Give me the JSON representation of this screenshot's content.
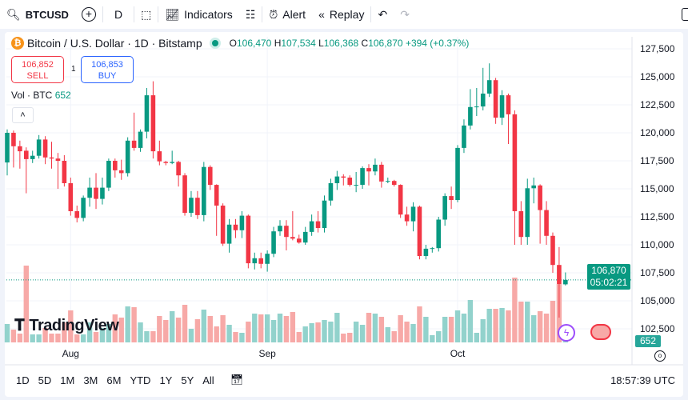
{
  "toolbar": {
    "symbol": "BTCUSD",
    "interval": "D",
    "indicators": "Indicators",
    "alert": "Alert",
    "replay": "Replay"
  },
  "legend": {
    "title": "Bitcoin / U.S. Dollar · 1D · Bitstamp",
    "o_label": "O",
    "o": "106,470",
    "h_label": "H",
    "h": "107,534",
    "l_label": "L",
    "l": "106,368",
    "c_label": "C",
    "c": "106,870",
    "change": "+394 (+0.37%)"
  },
  "trade": {
    "sell_price": "106,852",
    "sell": "SELL",
    "spread": "1",
    "buy_price": "106,853",
    "buy": "BUY"
  },
  "volume_legend": {
    "label": "Vol · BTC",
    "value": "652"
  },
  "logo": "TradingView",
  "price_label": {
    "price": "106,870",
    "countdown": "05:02:21"
  },
  "volume_label": "652",
  "bottom": {
    "ranges": [
      "1D",
      "5D",
      "1M",
      "3M",
      "6M",
      "YTD",
      "1Y",
      "5Y",
      "All"
    ],
    "time": "18:57:39 UTC"
  },
  "colors": {
    "up": "#089981",
    "down": "#f23645",
    "vol_up": "#92d2cc",
    "vol_down": "#f7a9a7"
  },
  "chart_data": {
    "type": "candlestick",
    "y_ticks": [
      127500,
      125000,
      122500,
      120000,
      117500,
      115000,
      112500,
      110000,
      107500,
      105000,
      102500
    ],
    "y_tick_labels": [
      "127,500",
      "125,000",
      "122,500",
      "120,000",
      "117,500",
      "115,000",
      "112,500",
      "110,000",
      "107,500",
      "105,000",
      "102,500"
    ],
    "x_labels": [
      {
        "label": "Aug",
        "index": 10
      },
      {
        "label": "Sep",
        "index": 41
      },
      {
        "label": "Oct",
        "index": 71
      }
    ],
    "last_price": 106870,
    "ohlc": [
      [
        117350,
        120300,
        116200,
        120000
      ],
      [
        120000,
        120200,
        116900,
        118800
      ],
      [
        118800,
        119300,
        116800,
        118350
      ],
      [
        118400,
        118700,
        114600,
        117650
      ],
      [
        117650,
        118400,
        117300,
        117950
      ],
      [
        117950,
        119800,
        117700,
        119400
      ],
      [
        119400,
        119700,
        117200,
        117800
      ],
      [
        117800,
        119200,
        116800,
        117700
      ],
      [
        117700,
        118200,
        115000,
        117500
      ],
      [
        117500,
        118000,
        115200,
        115500
      ],
      [
        115500,
        116000,
        112600,
        113000
      ],
      [
        113000,
        113500,
        112000,
        112400
      ],
      [
        112400,
        114400,
        112100,
        114200
      ],
      [
        114200,
        116000,
        113400,
        115100
      ],
      [
        115100,
        116400,
        113200,
        114100
      ],
      [
        114100,
        116000,
        113600,
        115100
      ],
      [
        115100,
        117700,
        114800,
        117500
      ],
      [
        117500,
        117700,
        116000,
        116650
      ],
      [
        116650,
        117600,
        115800,
        116400
      ],
      [
        116400,
        119600,
        116100,
        119300
      ],
      [
        119300,
        121800,
        118400,
        118650
      ],
      [
        118650,
        120300,
        118300,
        120100
      ],
      [
        120100,
        124000,
        119500,
        123350
      ],
      [
        123350,
        124600,
        117700,
        118350
      ],
      [
        118350,
        119300,
        117100,
        117450
      ],
      [
        117400,
        117500,
        117100,
        117300
      ],
      [
        117300,
        118400,
        117200,
        117400
      ],
      [
        117400,
        117500,
        115200,
        116200
      ],
      [
        116200,
        116400,
        112600,
        112850
      ],
      [
        112850,
        114800,
        112500,
        114200
      ],
      [
        114200,
        114800,
        112300,
        112650
      ],
      [
        112650,
        117400,
        112100,
        116950
      ],
      [
        116950,
        117100,
        114900,
        115350
      ],
      [
        115350,
        115400,
        110800,
        113500
      ],
      [
        113500,
        113700,
        109900,
        110100
      ],
      [
        110100,
        112300,
        109300,
        111800
      ],
      [
        111800,
        112300,
        110600,
        111300
      ],
      [
        111300,
        113000,
        110600,
        112600
      ],
      [
        112600,
        112700,
        107900,
        108350
      ],
      [
        108350,
        109300,
        107800,
        108800
      ],
      [
        108800,
        109300,
        107900,
        108300
      ],
      [
        108300,
        109500,
        107600,
        109200
      ],
      [
        109200,
        111600,
        108900,
        111200
      ],
      [
        111200,
        112200,
        110800,
        111700
      ],
      [
        111700,
        112200,
        109500,
        110700
      ],
      [
        110700,
        113000,
        110400,
        110550
      ],
      [
        110550,
        110900,
        110100,
        110200
      ],
      [
        110200,
        111600,
        110000,
        111150
      ],
      [
        111150,
        112700,
        110800,
        112100
      ],
      [
        112100,
        113000,
        111100,
        111500
      ],
      [
        111500,
        114400,
        111100,
        113950
      ],
      [
        113950,
        115900,
        113500,
        115500
      ],
      [
        115500,
        116600,
        114900,
        116100
      ],
      [
        116100,
        116300,
        115300,
        116000
      ],
      [
        116000,
        116200,
        115200,
        115350
      ],
      [
        115350,
        116500,
        114700,
        115350
      ],
      [
        115350,
        117000,
        115000,
        116850
      ],
      [
        116850,
        117200,
        115300,
        116550
      ],
      [
        116550,
        117700,
        116200,
        117150
      ],
      [
        117150,
        117400,
        115100,
        115650
      ],
      [
        115650,
        116000,
        115500,
        115700
      ],
      [
        115700,
        115800,
        115200,
        115350
      ],
      [
        115350,
        115400,
        112400,
        112700
      ],
      [
        112700,
        113400,
        111700,
        112100
      ],
      [
        112100,
        113800,
        111200,
        113400
      ],
      [
        113400,
        113500,
        108700,
        109000
      ],
      [
        109000,
        110000,
        108700,
        109650
      ],
      [
        109650,
        109800,
        109300,
        109700
      ],
      [
        109700,
        112500,
        109400,
        112250
      ],
      [
        112250,
        114600,
        111700,
        114350
      ],
      [
        114350,
        115200,
        113200,
        114000
      ],
      [
        114000,
        118900,
        113800,
        118650
      ],
      [
        118650,
        121200,
        118200,
        120650
      ],
      [
        120650,
        123900,
        120300,
        122300
      ],
      [
        122300,
        124000,
        121500,
        122350
      ],
      [
        122350,
        125800,
        122000,
        123500
      ],
      [
        123500,
        126200,
        123200,
        124700
      ],
      [
        124700,
        124900,
        120800,
        121350
      ],
      [
        121350,
        123800,
        120700,
        123350
      ],
      [
        123350,
        123500,
        119000,
        121650
      ],
      [
        121650,
        122000,
        110000,
        113000
      ],
      [
        113000,
        113900,
        110000,
        110700
      ],
      [
        110700,
        115900,
        110000,
        115050
      ],
      [
        115050,
        116000,
        113700,
        115300
      ],
      [
        115300,
        115400,
        110100,
        113100
      ],
      [
        113100,
        113900,
        110000,
        110800
      ],
      [
        110800,
        111100,
        107500,
        108200
      ],
      [
        108200,
        109800,
        103500,
        106500
      ],
      [
        106470,
        107534,
        106368,
        106870
      ]
    ],
    "volumes": [
      1150,
      800,
      550,
      4800,
      500,
      500,
      900,
      550,
      550,
      1250,
      2000,
      500,
      500,
      1250,
      650,
      900,
      1150,
      1750,
      1550,
      2250,
      2200,
      1250,
      700,
      700,
      1650,
      1400,
      1950,
      1550,
      2350,
      850,
      1450,
      2050,
      1650,
      1000,
      1700,
      1100,
      650,
      600,
      1300,
      1800,
      1750,
      1750,
      1400,
      1800,
      1650,
      1900,
      650,
      1000,
      1200,
      1250,
      1400,
      1300,
      1850,
      550,
      600,
      1300,
      1100,
      1850,
      1800,
      1600,
      950,
      700,
      1700,
      1300,
      1150,
      2250,
      1600,
      450,
      700,
      1600,
      1600,
      2000,
      1800,
      2650,
      600,
      1450,
      2100,
      2100,
      2150,
      2000,
      4050,
      2550,
      2550,
      1700,
      1950,
      1800,
      2600,
      3650,
      652
    ]
  }
}
